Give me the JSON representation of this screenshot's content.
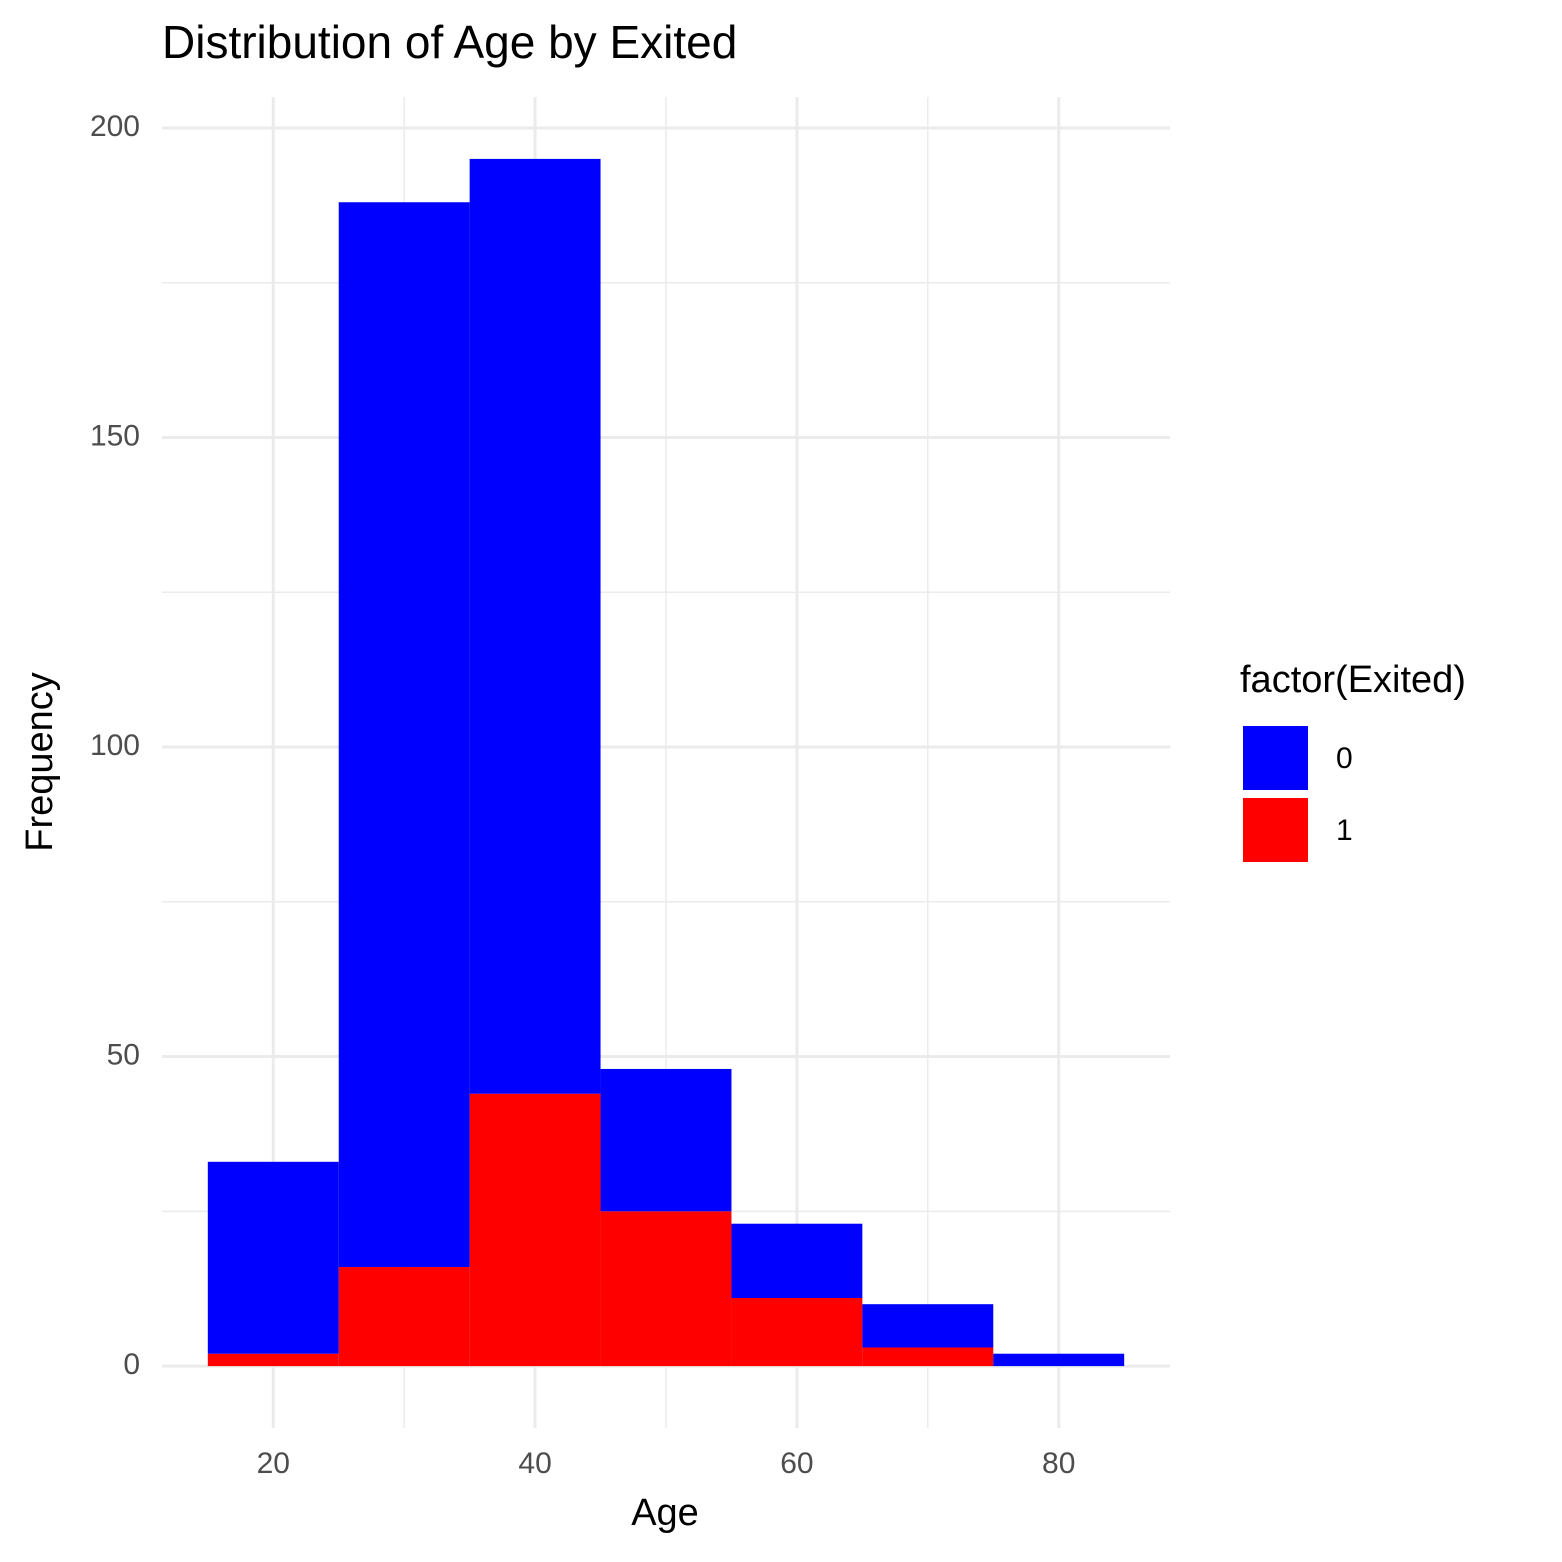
{
  "chart_data": {
    "type": "histogram",
    "title": "Distribution of Age by Exited",
    "xlabel": "Age",
    "ylabel": "Frequency",
    "legend_title": "factor(Exited)",
    "bins": [
      15,
      25,
      35,
      45,
      55,
      65,
      75,
      85
    ],
    "series": [
      {
        "name": "0",
        "color": "#0000ff",
        "values": [
          31,
          172,
          151,
          23,
          12,
          7,
          2
        ]
      },
      {
        "name": "1",
        "color": "#ff0000",
        "values": [
          2,
          16,
          44,
          25,
          11,
          3,
          0
        ]
      }
    ],
    "xlim": [
      11.5,
      88.5
    ],
    "xticks": [
      20,
      40,
      60,
      80
    ],
    "ylim": [
      -10,
      205
    ],
    "yticks": [
      0,
      50,
      100,
      150,
      200
    ],
    "grid": true,
    "legend": "right"
  }
}
